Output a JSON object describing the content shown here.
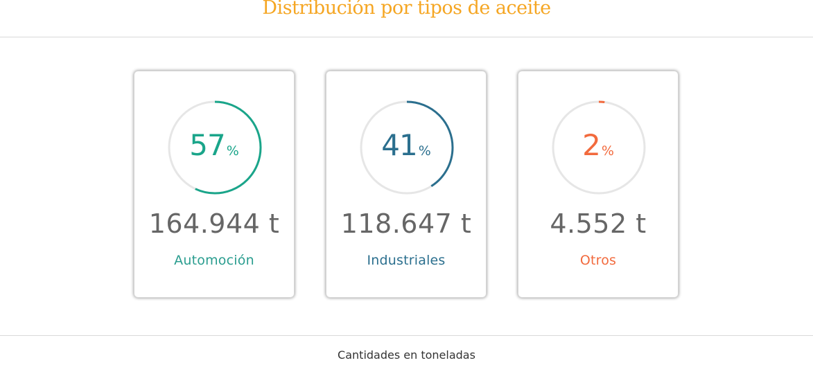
{
  "header": {
    "title": "Distribución por tipos de aceite"
  },
  "cards": [
    {
      "percent": "57",
      "percent_symbol": "%",
      "percent_value": 57,
      "amount": "164.944 t",
      "label": "Automoción",
      "color": "#1aa58a",
      "label_color": "#2a9d8f"
    },
    {
      "percent": "41",
      "percent_symbol": "%",
      "percent_value": 41,
      "amount": "118.647 t",
      "label": "Industriales",
      "color": "#2b6f8e",
      "label_color": "#2b6f8e"
    },
    {
      "percent": "2",
      "percent_symbol": "%",
      "percent_value": 2,
      "amount": "4.552 t",
      "label": "Otros",
      "color": "#f26a3d",
      "label_color": "#f26a3d"
    }
  ],
  "footer": {
    "note": "Cantidades en toneladas"
  },
  "colors": {
    "title": "#f5a623",
    "track": "#e6e6e6",
    "amount_text": "#666666"
  }
}
